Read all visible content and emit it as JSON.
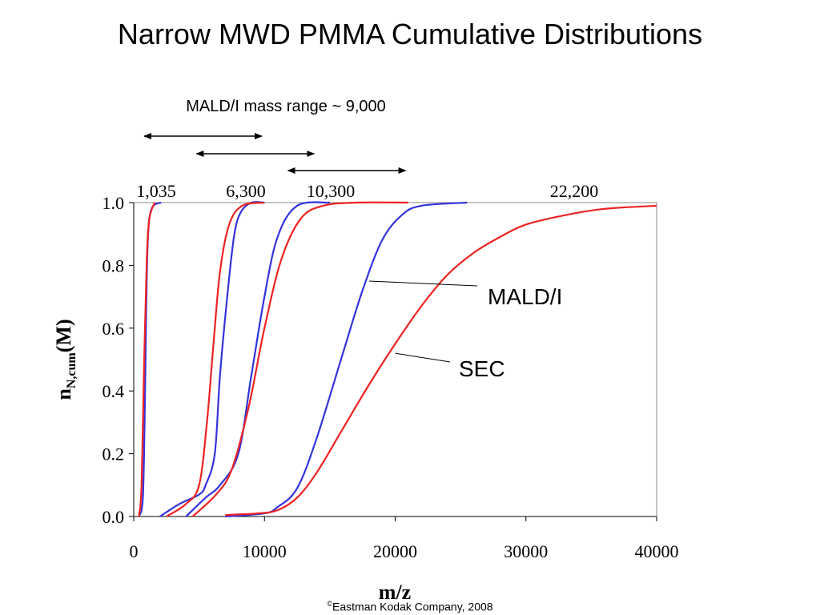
{
  "title": "Narrow MWD PMMA Cumulative Distributions",
  "footer": {
    "symbol": "©",
    "text": "Eastman Kodak Company, 2008"
  },
  "mass_range_label": "MALD/I mass range ~ 9,000",
  "colors": {
    "malDI": "#3333dd",
    "sec": "#ee2222",
    "axis": "#000000",
    "grid": "#888888"
  },
  "chart_data": {
    "type": "line",
    "title": "Narrow MWD PMMA Cumulative Distributions",
    "xlabel": "m/z",
    "ylabel_main": "n",
    "ylabel_sub": "N,cum",
    "ylabel_tail": "(M)",
    "xlim": [
      0,
      40000
    ],
    "ylim": [
      0,
      1.0
    ],
    "x_ticks": [
      0,
      10000,
      20000,
      30000,
      40000
    ],
    "x_tick_labels": [
      "0",
      "10000",
      "20000",
      "30000",
      "40000"
    ],
    "y_ticks": [
      0,
      0.2,
      0.4,
      0.6,
      0.8,
      1.0
    ],
    "y_tick_labels": [
      "0.0",
      "0.2",
      "0.4",
      "0.6",
      "0.8",
      "1.0"
    ],
    "peak_labels": [
      {
        "text": "1,035",
        "x": 1035
      },
      {
        "text": "6,300",
        "x": 6300
      },
      {
        "text": "10,300",
        "x": 10300
      },
      {
        "text": "22,200",
        "x": 22200
      }
    ],
    "mass_range_arrows": [
      [
        800,
        9800
      ],
      [
        4800,
        13800
      ],
      [
        11800,
        20800
      ]
    ],
    "annotations": [
      {
        "text": "MALD/I",
        "points_to": [
          18000,
          0.75
        ]
      },
      {
        "text": "SEC",
        "points_to": [
          20000,
          0.52
        ]
      }
    ],
    "series": [
      {
        "name": "MALD/I",
        "group": "1,035",
        "points": [
          [
            400,
            0
          ],
          [
            700,
            0.06
          ],
          [
            850,
            0.35
          ],
          [
            950,
            0.65
          ],
          [
            1050,
            0.85
          ],
          [
            1200,
            0.95
          ],
          [
            1500,
            0.99
          ],
          [
            2100,
            1.0
          ]
        ]
      },
      {
        "name": "SEC",
        "group": "1,035",
        "points": [
          [
            400,
            0
          ],
          [
            600,
            0.1
          ],
          [
            800,
            0.5
          ],
          [
            1000,
            0.82
          ],
          [
            1200,
            0.95
          ],
          [
            1600,
            1.0
          ]
        ]
      },
      {
        "name": "MALD/I",
        "group": "6,300",
        "points": [
          [
            2000,
            0
          ],
          [
            3500,
            0.04
          ],
          [
            5000,
            0.07
          ],
          [
            5500,
            0.1
          ],
          [
            6200,
            0.2
          ],
          [
            6600,
            0.45
          ],
          [
            7200,
            0.72
          ],
          [
            7700,
            0.9
          ],
          [
            8200,
            0.97
          ],
          [
            9000,
            1.0
          ],
          [
            10000,
            1.0
          ]
        ]
      },
      {
        "name": "SEC",
        "group": "6,300",
        "points": [
          [
            2500,
            0
          ],
          [
            4000,
            0.04
          ],
          [
            5000,
            0.1
          ],
          [
            5600,
            0.3
          ],
          [
            6100,
            0.55
          ],
          [
            6600,
            0.78
          ],
          [
            7300,
            0.93
          ],
          [
            8300,
            0.99
          ],
          [
            10000,
            1.0
          ]
        ]
      },
      {
        "name": "MALD/I",
        "group": "10,300",
        "points": [
          [
            4000,
            0
          ],
          [
            5500,
            0.06
          ],
          [
            6600,
            0.1
          ],
          [
            8000,
            0.2
          ],
          [
            9000,
            0.45
          ],
          [
            10000,
            0.7
          ],
          [
            11000,
            0.89
          ],
          [
            12500,
            0.99
          ],
          [
            15000,
            1.0
          ]
        ]
      },
      {
        "name": "SEC",
        "group": "10,300",
        "points": [
          [
            4500,
            0
          ],
          [
            6300,
            0.07
          ],
          [
            7500,
            0.15
          ],
          [
            8800,
            0.35
          ],
          [
            10000,
            0.6
          ],
          [
            11300,
            0.82
          ],
          [
            12800,
            0.95
          ],
          [
            14500,
            0.99
          ],
          [
            17000,
            1.0
          ],
          [
            21000,
            1.0
          ]
        ]
      },
      {
        "name": "MALD/I",
        "group": "22,200",
        "points": [
          [
            7000,
            0
          ],
          [
            10000,
            0.01
          ],
          [
            11000,
            0.03
          ],
          [
            12500,
            0.09
          ],
          [
            14000,
            0.25
          ],
          [
            16000,
            0.52
          ],
          [
            17500,
            0.72
          ],
          [
            19000,
            0.88
          ],
          [
            20500,
            0.96
          ],
          [
            22000,
            0.99
          ],
          [
            25500,
            1.0
          ]
        ]
      },
      {
        "name": "SEC",
        "group": "22,200",
        "points": [
          [
            7000,
            0.005
          ],
          [
            9500,
            0.01
          ],
          [
            11000,
            0.02
          ],
          [
            12500,
            0.06
          ],
          [
            14000,
            0.14
          ],
          [
            16000,
            0.28
          ],
          [
            18000,
            0.42
          ],
          [
            20000,
            0.55
          ],
          [
            22000,
            0.67
          ],
          [
            24000,
            0.77
          ],
          [
            26000,
            0.84
          ],
          [
            28000,
            0.89
          ],
          [
            30000,
            0.93
          ],
          [
            33000,
            0.96
          ],
          [
            36000,
            0.98
          ],
          [
            40000,
            0.99
          ]
        ]
      }
    ]
  }
}
